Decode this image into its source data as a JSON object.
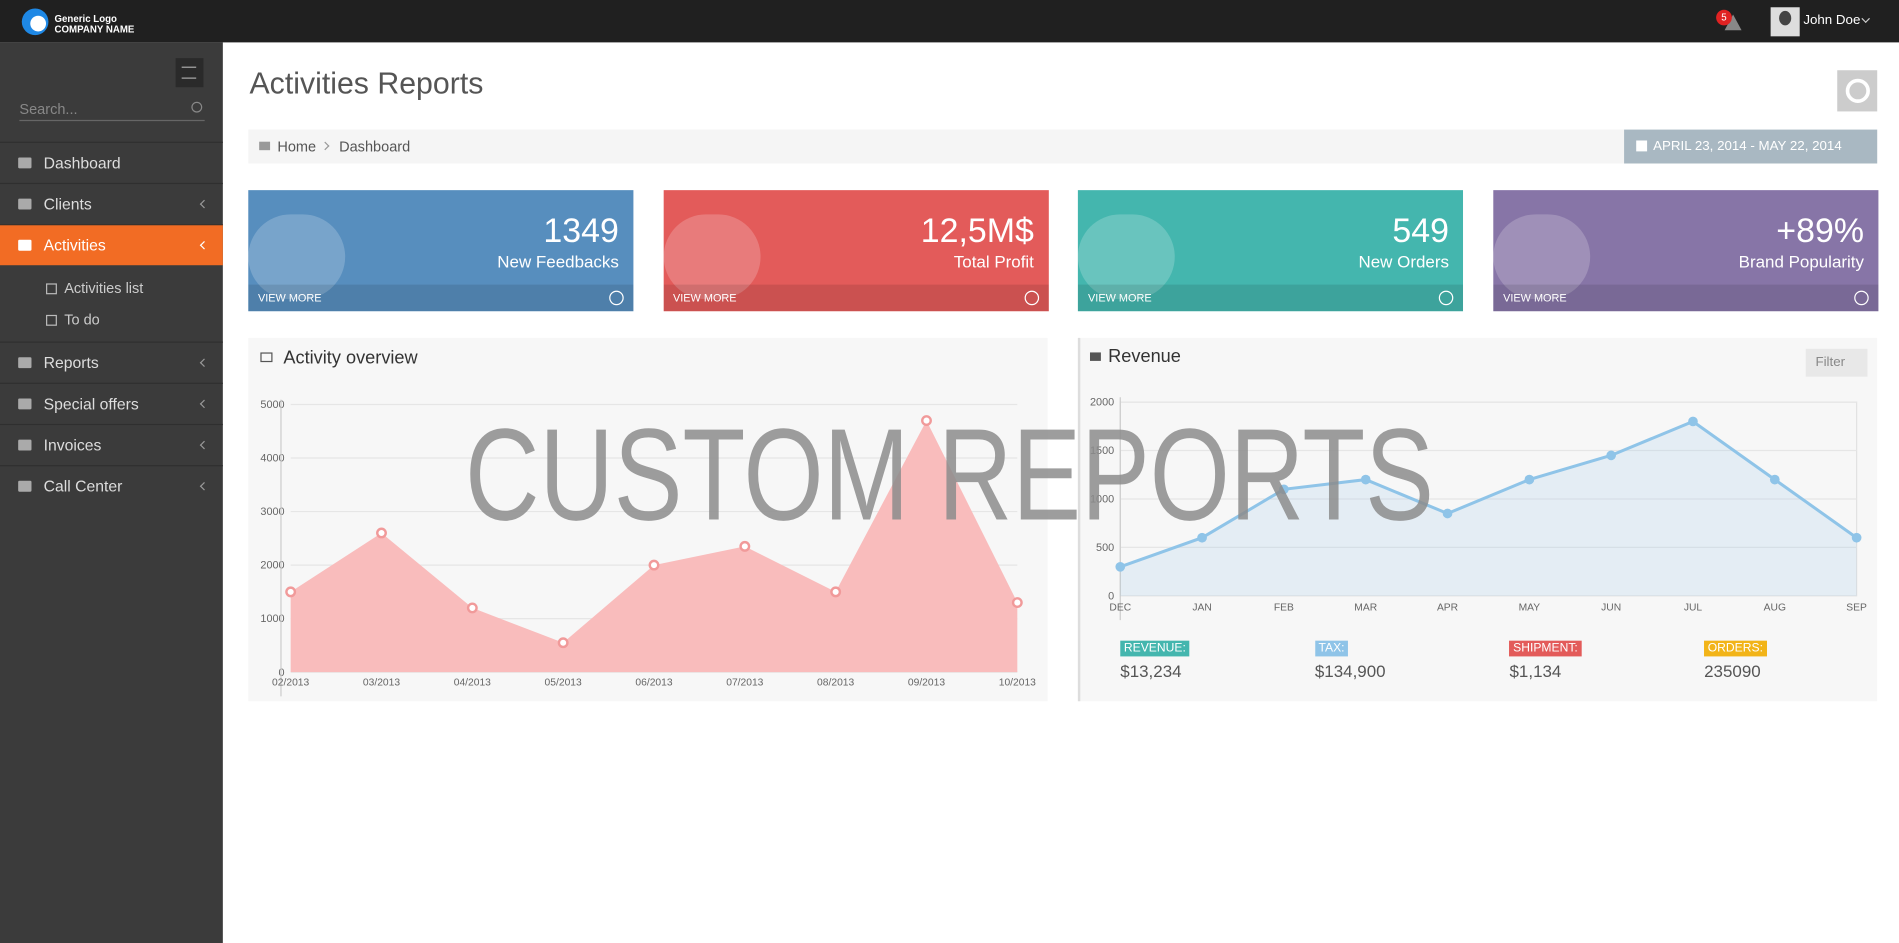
{
  "header": {
    "logo_line1": "Generic Logo",
    "logo_line2": "COMPANY NAME",
    "notifications": "5",
    "user": "John Doe"
  },
  "sidebar": {
    "search_placeholder": "Search...",
    "menu": [
      {
        "label": "Dashboard"
      },
      {
        "label": "Clients"
      },
      {
        "label": "Activities",
        "children": [
          "Activities list",
          "To do"
        ]
      },
      {
        "label": "Reports"
      },
      {
        "label": "Special offers"
      },
      {
        "label": "Invoices"
      },
      {
        "label": "Call Center"
      }
    ]
  },
  "page": {
    "title": "Activities Reports",
    "breadcrumb": [
      "Home",
      "Dashboard"
    ],
    "date_range": "APRIL 23, 2014 - MAY 22, 2014"
  },
  "tiles": [
    {
      "value": "1349",
      "label": "New Feedbacks",
      "link": "VIEW MORE",
      "color": "#578ebe"
    },
    {
      "value": "12,5M$",
      "label": "Total Profit",
      "link": "VIEW MORE",
      "color": "#e35b5a"
    },
    {
      "value": "549",
      "label": "New Orders",
      "link": "VIEW MORE",
      "color": "#44b6ae"
    },
    {
      "value": "+89%",
      "label": "Brand Popularity",
      "link": "VIEW MORE",
      "color": "#8775a7"
    }
  ],
  "chart_data": [
    {
      "type": "area",
      "title": "Activity overview",
      "categories": [
        "02/2013",
        "03/2013",
        "04/2013",
        "05/2013",
        "06/2013",
        "07/2013",
        "08/2013",
        "09/2013",
        "10/2013"
      ],
      "values": [
        1500,
        2600,
        1200,
        550,
        2000,
        2350,
        1500,
        4700,
        1300
      ],
      "color": "#f9bcbc",
      "ylim": [
        0,
        5000
      ],
      "yticks": [
        0,
        1000,
        2000,
        3000,
        4000,
        5000
      ],
      "grid": true
    },
    {
      "type": "line",
      "title": "Revenue",
      "filter": "Filter",
      "categories": [
        "DEC",
        "JAN",
        "FEB",
        "MAR",
        "APR",
        "MAY",
        "JUN",
        "JUL",
        "AUG",
        "SEP"
      ],
      "values": [
        300,
        600,
        1100,
        1200,
        850,
        1200,
        1450,
        1800,
        1200,
        600
      ],
      "color": "#8fc4e8",
      "ylim": [
        0,
        2000
      ],
      "yticks": [
        0,
        500,
        1000,
        1500,
        2000
      ],
      "grid": true
    }
  ],
  "revenue_stats": [
    {
      "label": "REVENUE:",
      "value": "$13,234",
      "color": "#44b6ae"
    },
    {
      "label": "TAX:",
      "value": "$134,900",
      "color": "#8fc4e8"
    },
    {
      "label": "SHIPMENT:",
      "value": "$1,134",
      "color": "#e35b5a"
    },
    {
      "label": "ORDERS:",
      "value": "235090",
      "color": "#f2b418"
    }
  ],
  "watermark": "CUSTOM REPORTS"
}
